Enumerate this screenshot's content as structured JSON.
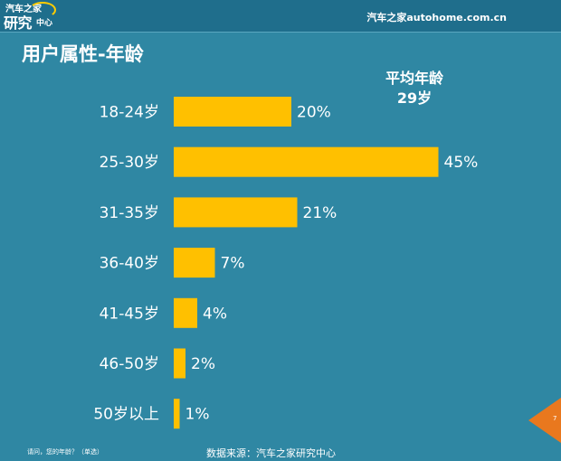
{
  "header": {
    "logo_line1": "汽车之家",
    "logo_line2": "研究",
    "logo_line3": "中心",
    "site": "汽车之家autohome.com.cn"
  },
  "title": "用户属性-年龄",
  "average": {
    "label": "平均年龄",
    "value": "29岁"
  },
  "chart_data": {
    "type": "bar",
    "orientation": "horizontal",
    "categories": [
      "18-24岁",
      "25-30岁",
      "31-35岁",
      "36-40岁",
      "41-45岁",
      "46-50岁",
      "50岁以上"
    ],
    "values": [
      20,
      45,
      21,
      7,
      4,
      2,
      1
    ],
    "value_labels": [
      "20%",
      "45%",
      "21%",
      "7%",
      "4%",
      "2%",
      "1%"
    ],
    "unit": "%",
    "bar_color": "#ffc000",
    "grid": false,
    "legend": "none"
  },
  "footer": {
    "question": "请问，您的年龄？（单选）",
    "source": "数据来源：汽车之家研究中心",
    "page": "7"
  },
  "colors": {
    "background": "#2f87a3",
    "topbar": "#1f6e8c",
    "accent": "#e9781e"
  }
}
